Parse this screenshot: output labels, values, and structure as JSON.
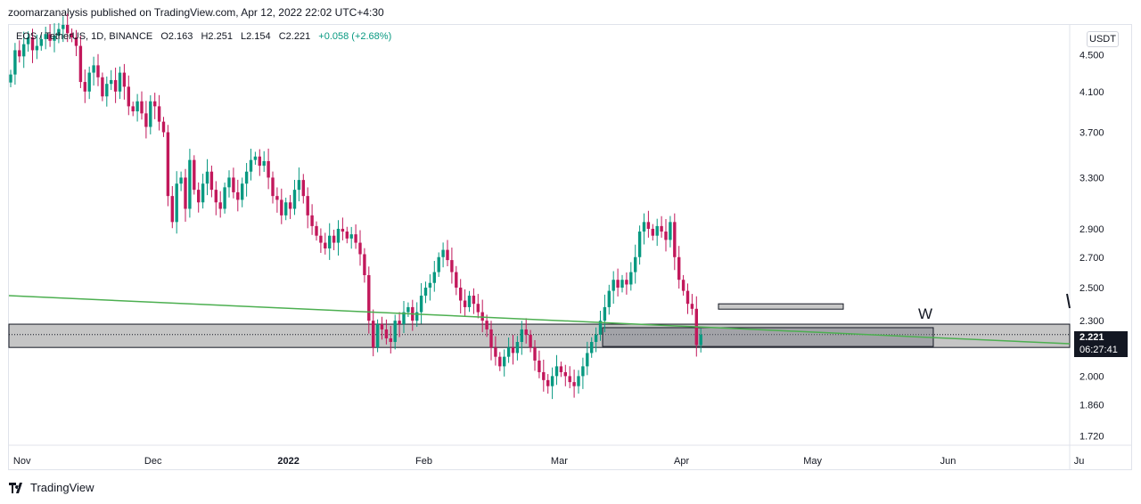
{
  "header": {
    "published_text": "zoomarzanalysis published on TradingView.com, Apr 12, 2022 22:02 UTC+4:30"
  },
  "legend": {
    "symbol": "EOS / TetherUS, 1D, BINANCE",
    "open": "O2.163",
    "high": "H2.251",
    "low": "L2.154",
    "close": "C2.221",
    "change": "+0.058 (+2.68%)"
  },
  "currency": "USDT",
  "last_price": {
    "value": "2.221",
    "countdown": "06:27:41"
  },
  "footer": {
    "brand": "TradingView"
  },
  "colors": {
    "up": "#089981",
    "down": "#c2185b",
    "trendline": "#4caf50",
    "zone": "#9e9e9e"
  },
  "chart_data": {
    "type": "candlestick",
    "symbol": "EOS/USDT",
    "timeframe": "1D",
    "y_ticks": [
      "4.500",
      "4.100",
      "3.700",
      "3.300",
      "2.900",
      "2.700",
      "2.500",
      "2.300",
      "2.000",
      "1.860",
      "1.720"
    ],
    "x_ticks": [
      "Nov",
      "Dec",
      "2022",
      "Feb",
      "Mar",
      "Apr",
      "May",
      "Jun",
      "Ju"
    ],
    "ylim": [
      1.68,
      4.85
    ],
    "scale": "log",
    "x_start": "2021-10-29",
    "xlim_days": [
      0,
      246
    ],
    "closes": [
      4.28,
      4.55,
      4.48,
      4.62,
      4.7,
      4.55,
      4.6,
      4.68,
      4.74,
      4.66,
      4.72,
      4.8,
      4.85,
      4.75,
      4.7,
      4.6,
      4.2,
      4.1,
      4.3,
      4.38,
      4.25,
      4.05,
      4.18,
      4.22,
      4.1,
      4.3,
      4.15,
      3.95,
      3.9,
      4.0,
      3.88,
      3.75,
      4.0,
      3.95,
      3.8,
      3.7,
      3.15,
      2.95,
      3.25,
      3.3,
      3.05,
      3.45,
      3.2,
      3.1,
      3.25,
      3.35,
      3.2,
      3.1,
      3.05,
      3.22,
      3.3,
      3.18,
      3.12,
      3.25,
      3.35,
      3.45,
      3.48,
      3.4,
      3.44,
      3.3,
      3.15,
      3.12,
      3.0,
      3.1,
      3.05,
      3.2,
      3.28,
      3.15,
      3.0,
      2.92,
      2.85,
      2.8,
      2.76,
      2.85,
      2.8,
      2.9,
      2.88,
      2.83,
      2.86,
      2.8,
      2.72,
      2.58,
      2.3,
      2.15,
      2.28,
      2.25,
      2.2,
      2.18,
      2.3,
      2.28,
      2.35,
      2.38,
      2.3,
      2.35,
      2.45,
      2.5,
      2.53,
      2.6,
      2.7,
      2.75,
      2.68,
      2.6,
      2.5,
      2.42,
      2.38,
      2.45,
      2.4,
      2.35,
      2.3,
      2.25,
      2.15,
      2.1,
      2.05,
      2.1,
      2.15,
      2.12,
      2.18,
      2.25,
      2.22,
      2.15,
      2.08,
      2.02,
      1.98,
      1.95,
      2.0,
      2.05,
      2.02,
      2.0,
      1.97,
      1.95,
      2.0,
      2.05,
      2.12,
      2.18,
      2.22,
      2.3,
      2.38,
      2.48,
      2.55,
      2.5,
      2.55,
      2.52,
      2.6,
      2.7,
      2.88,
      2.95,
      2.9,
      2.85,
      2.92,
      2.88,
      2.82,
      2.95,
      2.7,
      2.55,
      2.48,
      2.4,
      2.37,
      2.163,
      2.221
    ],
    "annotations": [
      {
        "type": "trendline",
        "y_start": 2.45,
        "y_end": 2.17,
        "color": "#4caf50"
      },
      {
        "type": "zone",
        "y_top": 2.28,
        "y_bottom": 2.15
      },
      {
        "type": "box",
        "y_top": 2.26,
        "y_bottom": 2.155
      },
      {
        "type": "box",
        "y_top": 2.4,
        "y_bottom": 2.38
      },
      {
        "type": "text",
        "text": "W"
      }
    ]
  }
}
